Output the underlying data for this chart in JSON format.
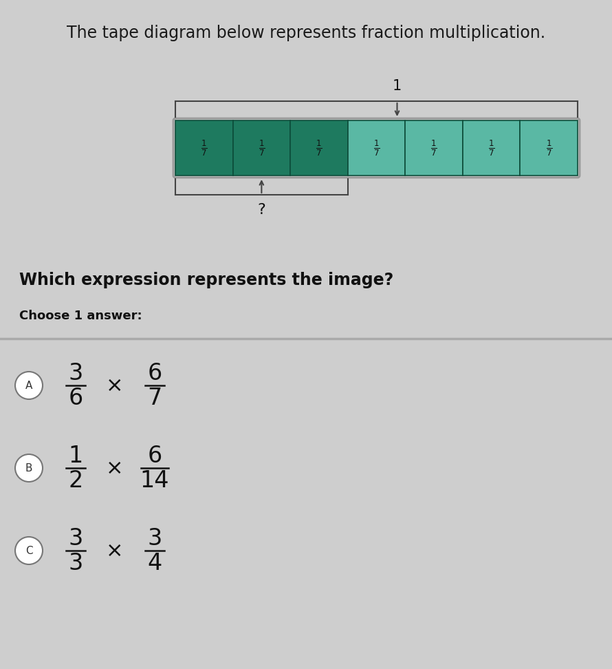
{
  "title": "The tape diagram below represents fraction multiplication.",
  "bg_color": "#cecece",
  "num_cells": 7,
  "highlighted_cells": 3,
  "cell_label_num": 1,
  "cell_label_den": 7,
  "dark_green": "#1e7a5f",
  "light_green": "#5ab8a4",
  "cell_border": "#0d4d3a",
  "outer_border": "#888888",
  "label_1": "1",
  "label_q": "?",
  "question": "Which expression represents the image?",
  "choose": "Choose 1 answer:",
  "options": [
    {
      "letter": "A",
      "num1": "3",
      "den1": "6",
      "num2": "6",
      "den2": "7"
    },
    {
      "letter": "B",
      "num1": "1",
      "den1": "2",
      "num2": "6",
      "den2": "14"
    },
    {
      "letter": "C",
      "num1": "3",
      "den1": "3",
      "num2": "3",
      "den2": "4"
    }
  ]
}
